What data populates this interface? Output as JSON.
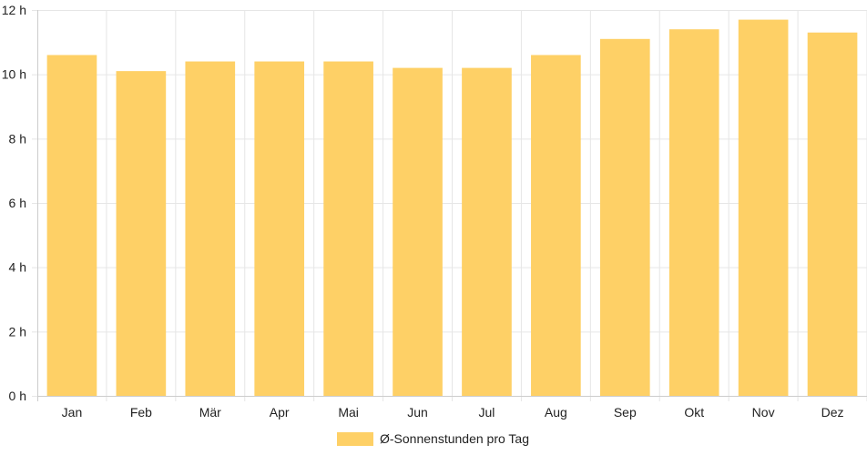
{
  "chart_data": {
    "type": "bar",
    "categories": [
      "Jan",
      "Feb",
      "Mär",
      "Apr",
      "Mai",
      "Jun",
      "Jul",
      "Aug",
      "Sep",
      "Okt",
      "Nov",
      "Dez"
    ],
    "series": [
      {
        "name": "Ø-Sonnenstunden pro Tag",
        "values": [
          10.6,
          10.1,
          10.4,
          10.4,
          10.4,
          10.2,
          10.2,
          10.6,
          11.1,
          11.4,
          11.7,
          11.3
        ]
      }
    ],
    "ylim": [
      0,
      12
    ],
    "yticks": [
      0,
      2,
      4,
      6,
      8,
      10,
      12
    ],
    "ytick_suffix": " h",
    "grid": true,
    "legend_position": "bottom",
    "bar_color": "#fed066",
    "grid_color": "#e6e6e6",
    "axis_color": "#cccccc"
  }
}
